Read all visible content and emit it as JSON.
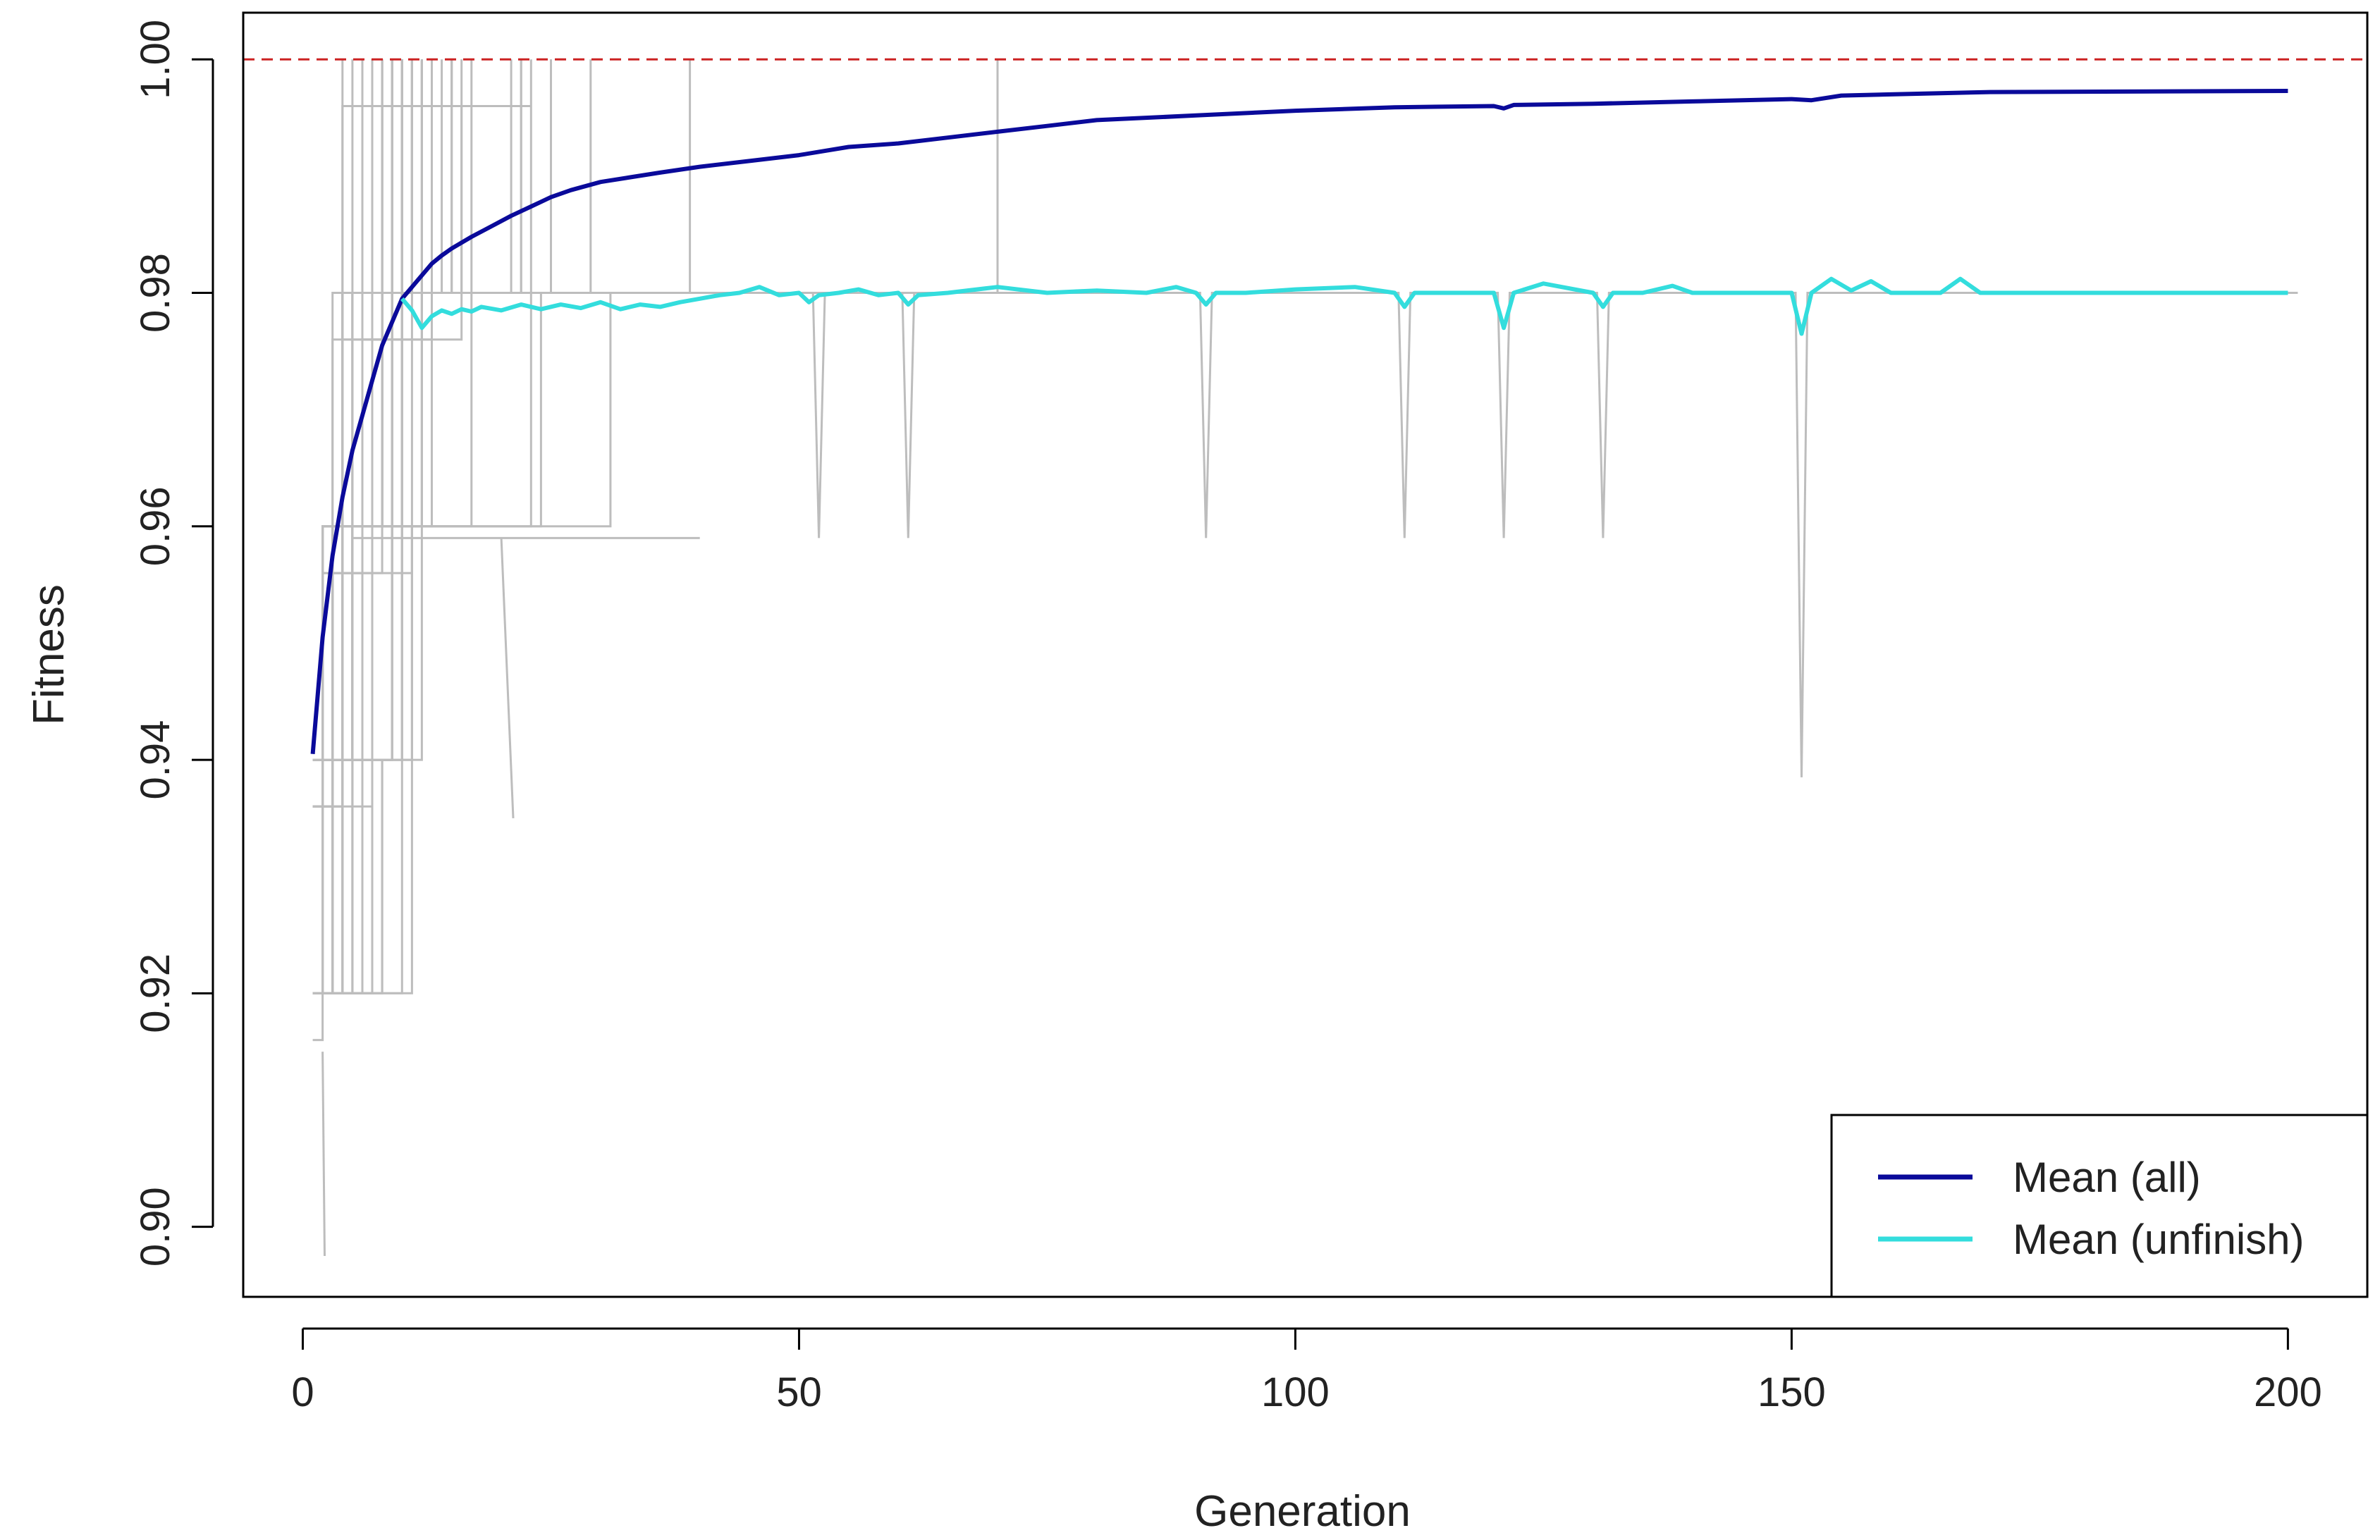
{
  "chart_data": {
    "type": "line",
    "title": "",
    "xlabel": "Generation",
    "ylabel": "Fitness",
    "xlim": [
      -6,
      208
    ],
    "ylim": [
      0.894,
      1.004
    ],
    "xticks": [
      0,
      50,
      100,
      150,
      200
    ],
    "xtick_labels": [
      "0",
      "50",
      "100",
      "150",
      "200"
    ],
    "yticks": [
      0.9,
      0.92,
      0.94,
      0.96,
      0.98,
      1.0
    ],
    "ytick_labels": [
      "0.90",
      "0.92",
      "0.94",
      "0.96",
      "0.98",
      "1.00"
    ],
    "reference_line": {
      "y": 1.0,
      "style": "dashed",
      "color": "#cc2222"
    },
    "colors": {
      "mean_all": "#0a0a9a",
      "mean_unfinish": "#33dddd",
      "runs": "#bdbdbd"
    },
    "series": [
      {
        "name": "Mean (all)",
        "x": [
          1,
          2,
          3,
          4,
          5,
          6,
          7,
          8,
          9,
          10,
          11,
          12,
          13,
          14,
          15,
          17,
          19,
          21,
          23,
          25,
          27,
          30,
          33,
          36,
          40,
          45,
          50,
          55,
          60,
          65,
          70,
          75,
          80,
          90,
          100,
          110,
          120,
          121,
          122,
          130,
          140,
          150,
          152,
          155,
          160,
          170,
          200
        ],
        "values": [
          0.9405,
          0.9505,
          0.9575,
          0.9625,
          0.9665,
          0.9695,
          0.9725,
          0.9755,
          0.9775,
          0.9795,
          0.9805,
          0.9815,
          0.9825,
          0.9832,
          0.9838,
          0.9848,
          0.9857,
          0.9866,
          0.9874,
          0.9882,
          0.9888,
          0.9895,
          0.9899,
          0.9903,
          0.9908,
          0.9913,
          0.9918,
          0.9925,
          0.9928,
          0.9933,
          0.9938,
          0.9943,
          0.9948,
          0.9952,
          0.9956,
          0.9959,
          0.996,
          0.9958,
          0.9961,
          0.9962,
          0.9964,
          0.9966,
          0.9965,
          0.9969,
          0.997,
          0.9972,
          0.9973
        ]
      },
      {
        "name": "Mean (unfinish)",
        "x": [
          10,
          11,
          12,
          13,
          14,
          15,
          16,
          17,
          18,
          20,
          22,
          24,
          26,
          28,
          30,
          32,
          34,
          36,
          38,
          40,
          42,
          44,
          46,
          48,
          50,
          51,
          52,
          54,
          56,
          58,
          60,
          61,
          62,
          65,
          70,
          75,
          80,
          85,
          88,
          90,
          91,
          92,
          95,
          100,
          106,
          110,
          111,
          112,
          115,
          120,
          121,
          122,
          125,
          130,
          131,
          132,
          135,
          138,
          140,
          145,
          150,
          151,
          152,
          154,
          156,
          158,
          160,
          165,
          167,
          169,
          175,
          200
        ],
        "values": [
          0.9795,
          0.9785,
          0.977,
          0.978,
          0.9785,
          0.9782,
          0.9786,
          0.9784,
          0.9788,
          0.9785,
          0.979,
          0.9786,
          0.979,
          0.9787,
          0.9792,
          0.9786,
          0.979,
          0.9788,
          0.9792,
          0.9795,
          0.9798,
          0.98,
          0.9805,
          0.9798,
          0.98,
          0.9792,
          0.9798,
          0.98,
          0.9803,
          0.9798,
          0.98,
          0.979,
          0.9798,
          0.98,
          0.9805,
          0.98,
          0.9802,
          0.98,
          0.9805,
          0.98,
          0.979,
          0.98,
          0.98,
          0.9803,
          0.9805,
          0.98,
          0.9788,
          0.98,
          0.98,
          0.98,
          0.977,
          0.98,
          0.9808,
          0.98,
          0.9788,
          0.98,
          0.98,
          0.9806,
          0.98,
          0.98,
          0.98,
          0.9765,
          0.98,
          0.9812,
          0.9802,
          0.981,
          0.98,
          0.98,
          0.9812,
          0.98,
          0.98,
          0.98
        ]
      }
    ],
    "legend": {
      "position": "bottom-right",
      "entries": [
        "Mean (all)",
        "Mean (unfinish)"
      ]
    }
  }
}
